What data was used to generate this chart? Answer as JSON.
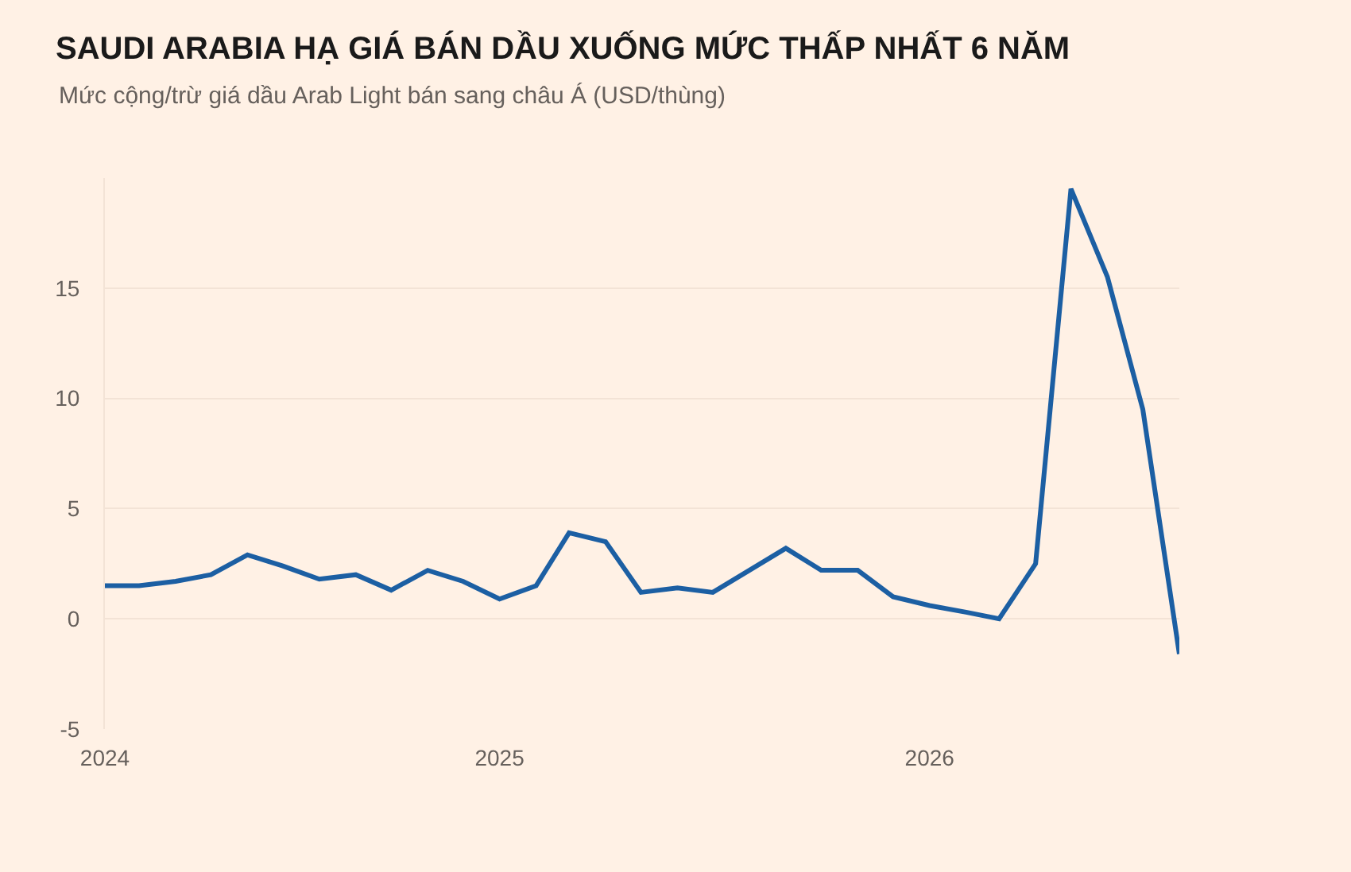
{
  "chart_data": {
    "type": "line",
    "title": "SAUDI ARABIA HẠ GIÁ BÁN DẦU XUỐNG MỨC THẤP NHẤT 6 NĂM",
    "subtitle": "Mức cộng/trừ giá dầu Arab Light bán sang châu Á (USD/thùng)",
    "x": [
      "2024-02",
      "2024-03",
      "2024-04",
      "2024-05",
      "2024-06",
      "2024-07",
      "2024-08",
      "2024-09",
      "2024-10",
      "2024-11",
      "2024-12",
      "2025-01",
      "2025-02",
      "2025-03",
      "2025-04",
      "2025-05",
      "2025-06",
      "2025-07",
      "2025-08",
      "2025-09",
      "2025-10",
      "2025-11",
      "2025-12",
      "2026-01",
      "2026-02",
      "2026-03",
      "2026-04",
      "2026-05",
      "2026-06",
      "2026-07",
      "2026-08"
    ],
    "series": [
      {
        "color": "#1c5fa3",
        "values": [
          1.5,
          1.5,
          1.7,
          2.0,
          2.9,
          2.4,
          1.8,
          2.0,
          1.3,
          2.2,
          1.7,
          0.9,
          1.5,
          3.9,
          3.5,
          1.2,
          1.4,
          1.2,
          2.2,
          3.2,
          2.2,
          2.2,
          1.0,
          0.6,
          0.3,
          0.0,
          2.5,
          19.5,
          15.5,
          9.5,
          -1.6
        ]
      }
    ],
    "xlim": [
      "2024-02",
      "2026-08"
    ],
    "xticks": [
      {
        "value": "2024-02",
        "label": "2024"
      },
      {
        "value": "2025-01",
        "label": "2025"
      },
      {
        "value": "2026-01",
        "label": "2026"
      }
    ],
    "ylim": [
      -5,
      20
    ],
    "yticks": [
      -5,
      0,
      5,
      10,
      15
    ],
    "grid": "y",
    "marker": "none",
    "line_style": "solid"
  }
}
